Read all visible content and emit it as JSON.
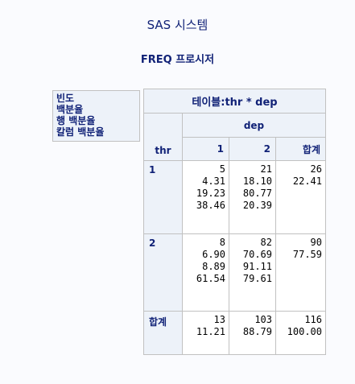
{
  "title": "SAS 시스템",
  "subtitle": "FREQ 프로시저",
  "legend": [
    "빈도",
    "백분율",
    "행 백분율",
    "칼럼 백분율"
  ],
  "table": {
    "caption": "테이블:thr * dep",
    "col_var": "dep",
    "row_var": "thr",
    "col_headers": [
      "1",
      "2",
      "합계"
    ],
    "rows": [
      {
        "label": "1",
        "cells": [
          [
            "5",
            "4.31",
            "19.23",
            "38.46"
          ],
          [
            "21",
            "18.10",
            "80.77",
            "20.39"
          ],
          [
            "26",
            "22.41"
          ]
        ]
      },
      {
        "label": "2",
        "cells": [
          [
            "8",
            "6.90",
            "8.89",
            "61.54"
          ],
          [
            "82",
            "70.69",
            "91.11",
            "79.61"
          ],
          [
            "90",
            "77.59"
          ]
        ]
      },
      {
        "label": "합계",
        "cells": [
          [
            "13",
            "11.21"
          ],
          [
            "103",
            "88.79"
          ],
          [
            "116",
            "100.00"
          ]
        ]
      }
    ]
  }
}
